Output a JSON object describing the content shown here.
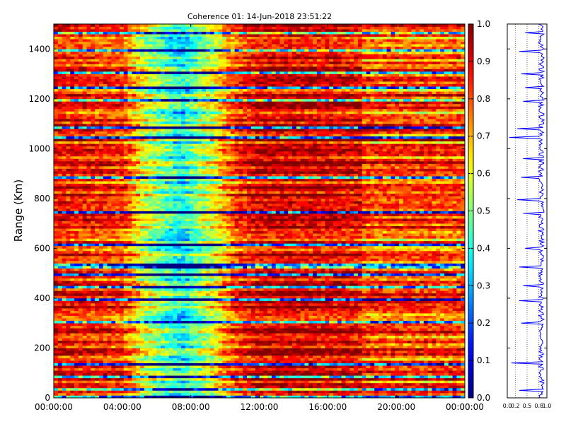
{
  "chart_data": {
    "type": "heatmap",
    "title": "Coherence 01: 14-Jun-2018 23:51:22",
    "ylabel": "Range (Km)",
    "xlabel": "",
    "x_ticks": [
      "00:00:00",
      "04:00:00",
      "08:00:00",
      "12:00:00",
      "16:00:00",
      "20:00:00",
      "00:00:00"
    ],
    "x_range_hours": [
      0,
      24
    ],
    "y_ticks": [
      0,
      200,
      400,
      600,
      800,
      1000,
      1200,
      1400
    ],
    "ylim": [
      0,
      1500
    ],
    "colormap": "jet",
    "colorbar": {
      "ticks": [
        0.0,
        0.1,
        0.2,
        0.3,
        0.4,
        0.5,
        0.6,
        0.7,
        0.8,
        0.9,
        1.0
      ],
      "range": [
        0,
        1
      ]
    },
    "time_profile": [
      {
        "hour": 0,
        "level": 0.86
      },
      {
        "hour": 2,
        "level": 0.84
      },
      {
        "hour": 4,
        "level": 0.82
      },
      {
        "hour": 5.2,
        "level": 0.6
      },
      {
        "hour": 6.5,
        "level": 0.46
      },
      {
        "hour": 7.5,
        "level": 0.38
      },
      {
        "hour": 8.3,
        "level": 0.48
      },
      {
        "hour": 9.5,
        "level": 0.62
      },
      {
        "hour": 10.5,
        "level": 0.8
      },
      {
        "hour": 12,
        "level": 0.9
      },
      {
        "hour": 14,
        "level": 0.9
      },
      {
        "hour": 16,
        "level": 0.89
      },
      {
        "hour": 17.9,
        "level": 0.88
      },
      {
        "hour": 18,
        "level": 0.84
      },
      {
        "hour": 24,
        "level": 0.84
      }
    ],
    "low_coherence_ranges_km": [
      6,
      32,
      84,
      137,
      300,
      390,
      445,
      490,
      520,
      530,
      610,
      740,
      885,
      1045,
      1080,
      1190,
      1245,
      1300,
      1390,
      1465
    ],
    "side_profile": {
      "x_ticks": [
        "0.0",
        "0.2",
        "0.5",
        "0.8",
        "1.0"
      ],
      "xlim": [
        0,
        1
      ],
      "dips": [
        {
          "range_km": 30,
          "value": 0.3
        },
        {
          "range_km": 140,
          "value": 0.1
        },
        {
          "range_km": 300,
          "value": 0.35
        },
        {
          "range_km": 390,
          "value": 0.3
        },
        {
          "range_km": 450,
          "value": 0.4
        },
        {
          "range_km": 525,
          "value": 0.3
        },
        {
          "range_km": 600,
          "value": 0.45
        },
        {
          "range_km": 740,
          "value": 0.4
        },
        {
          "range_km": 795,
          "value": 0.25
        },
        {
          "range_km": 885,
          "value": 0.35
        },
        {
          "range_km": 960,
          "value": 0.4
        },
        {
          "range_km": 1045,
          "value": 0.05
        },
        {
          "range_km": 1080,
          "value": 0.25
        },
        {
          "range_km": 1190,
          "value": 0.4
        },
        {
          "range_km": 1245,
          "value": 0.45
        },
        {
          "range_km": 1300,
          "value": 0.35
        },
        {
          "range_km": 1390,
          "value": 0.3
        },
        {
          "range_km": 1465,
          "value": 0.45
        }
      ]
    }
  }
}
